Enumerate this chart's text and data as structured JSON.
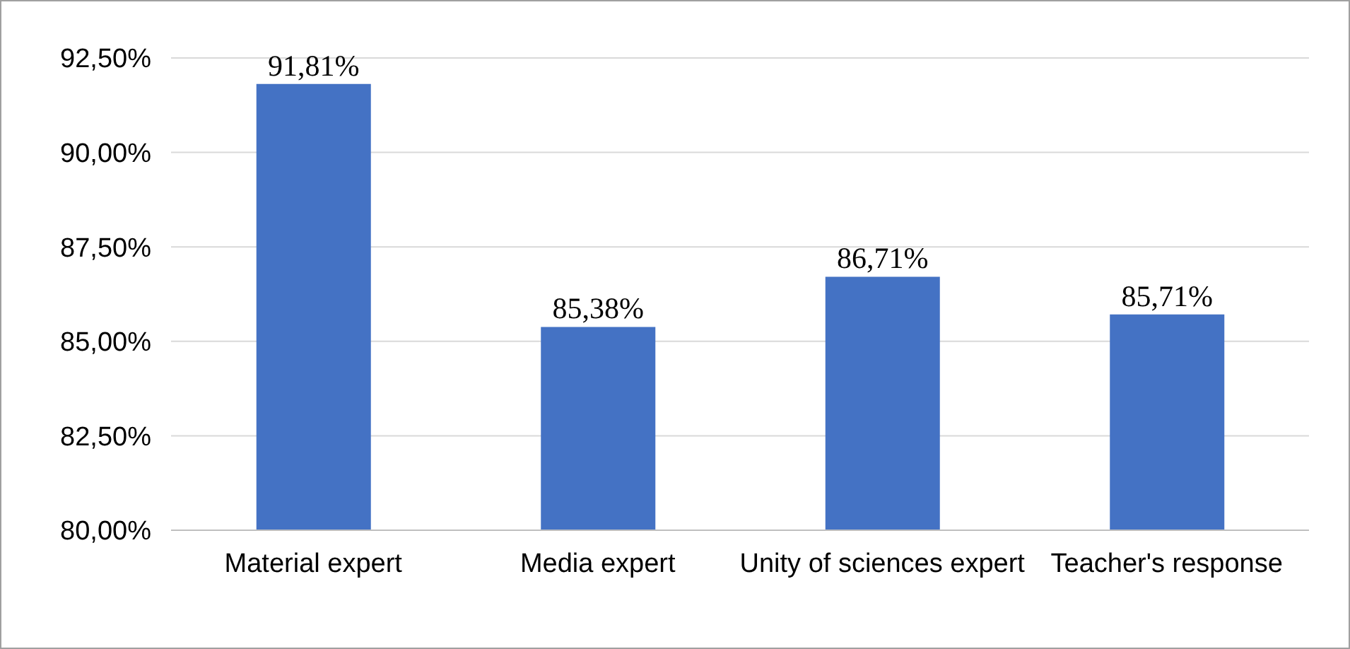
{
  "chart_data": {
    "type": "bar",
    "categories": [
      "Material expert",
      "Media expert",
      "Unity of sciences expert",
      "Teacher's response"
    ],
    "values": [
      91.81,
      85.38,
      86.71,
      85.71
    ],
    "value_labels": [
      "91,81%",
      "85,38%",
      "86,71%",
      "85,71%"
    ],
    "color": "#4472c4",
    "ylim": [
      80,
      92.5
    ],
    "yticks": [
      {
        "value": 80,
        "label": "80,00%"
      },
      {
        "value": 82.5,
        "label": "82,50%"
      },
      {
        "value": 85,
        "label": "85,00%"
      },
      {
        "value": 87.5,
        "label": "87,50%"
      },
      {
        "value": 90,
        "label": "90,00%"
      },
      {
        "value": 92.5,
        "label": "92,50%"
      }
    ],
    "grid": "y"
  }
}
